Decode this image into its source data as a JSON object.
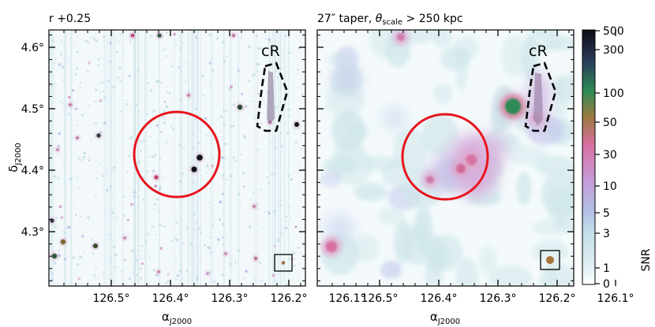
{
  "figure": {
    "panels": [
      {
        "title": "r +0.25",
        "marker_label": "cR"
      },
      {
        "title_prefix": "27″ taper, ",
        "title_theta": "θ",
        "title_sub": "scale",
        "title_suffix": " > 250 kpc",
        "marker_label": "cR"
      }
    ],
    "ylabel_main": "δ",
    "ylabel_sub": "J2000",
    "xlabel_main": "α",
    "xlabel_sub": "J2000",
    "x_ticks": [
      "126.5°",
      "126.4°",
      "126.3°",
      "126.2°",
      "126.1°"
    ],
    "y_ticks": [
      "4.3°",
      "4.4°",
      "4.5°",
      "4.6°"
    ],
    "colorbar": {
      "label": "SNR",
      "ticks": [
        "0",
        "1",
        "3",
        "5",
        "10",
        "30",
        "50",
        "100",
        "300",
        "500"
      ],
      "colors": [
        "#ffffff",
        "#e3f1f3",
        "#c4dfe8",
        "#b2bfe6",
        "#c79bd8",
        "#d86fa0",
        "#9a7a40",
        "#2e8a55",
        "#2a3a5a",
        "#0c0c14"
      ]
    },
    "circle_color": "#e8141c"
  },
  "chart_data": [
    {
      "type": "image",
      "title": "r +0.25",
      "xlabel": "αJ2000",
      "ylabel": "δJ2000",
      "xlim": [
        126.51,
        126.05
      ],
      "ylim": [
        4.22,
        4.675
      ],
      "circle": {
        "center": [
          126.285,
          4.453
        ],
        "radius_deg": 0.08,
        "color": "red"
      },
      "region_label": "cR",
      "region_polygon": [
        [
          126.133,
          4.6
        ],
        [
          126.11,
          4.605
        ],
        [
          126.095,
          4.565
        ],
        [
          126.085,
          4.51
        ],
        [
          126.11,
          4.5
        ],
        [
          126.125,
          4.51
        ],
        [
          126.143,
          4.55
        ]
      ],
      "colorbar": {
        "label": "SNR",
        "scale": "log",
        "range": [
          0,
          500
        ]
      }
    },
    {
      "type": "image",
      "title": "27″ taper, θscale > 250 kpc",
      "xlabel": "αJ2000",
      "ylim": [
        4.22,
        4.675
      ],
      "xlim": [
        126.51,
        126.05
      ],
      "circle": {
        "center": [
          126.285,
          4.453
        ],
        "radius_deg": 0.08,
        "color": "red"
      },
      "region_label": "cR",
      "region_polygon": [
        [
          126.133,
          4.6
        ],
        [
          126.11,
          4.605
        ],
        [
          126.095,
          4.565
        ],
        [
          126.085,
          4.51
        ],
        [
          126.11,
          4.5
        ],
        [
          126.125,
          4.51
        ],
        [
          126.143,
          4.55
        ]
      ],
      "colorbar": {
        "label": "SNR",
        "scale": "log",
        "range": [
          0,
          500
        ]
      }
    }
  ]
}
